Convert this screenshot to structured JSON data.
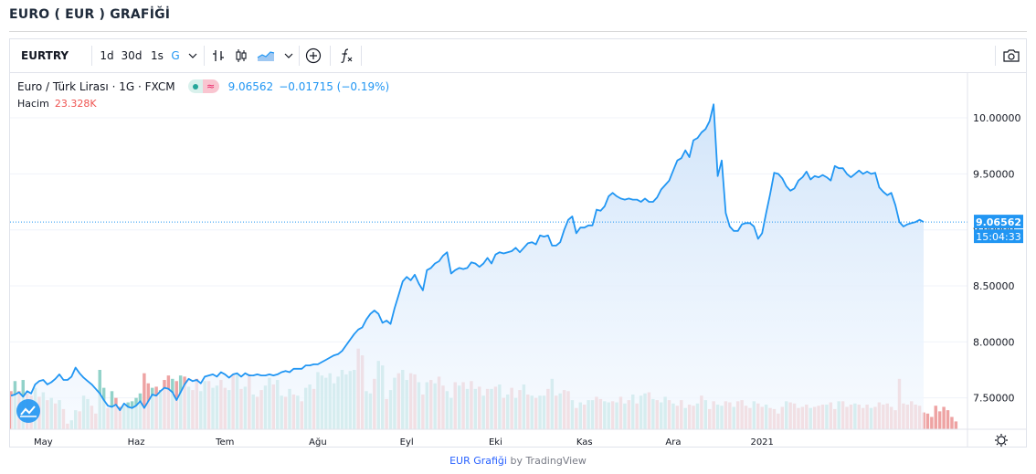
{
  "page": {
    "title": "EURO ( EUR ) GRAFİĞİ"
  },
  "toolbar": {
    "symbol": "EURTRY",
    "intervals": [
      "1d",
      "30d",
      "1s",
      "G"
    ],
    "active_interval": "G",
    "dropdown_icon": "chevron-down-icon",
    "icons": [
      "bar-style-icon",
      "candles-style-icon",
      "area-style-icon",
      "chevron-down-icon",
      "add-compare-icon",
      "indicators-fx-icon",
      "snapshot-camera-icon"
    ]
  },
  "legend": {
    "name": "Euro / Türk Lirası · 1G · FXCM",
    "pill_right": "≈",
    "price": "9.06562",
    "change": "−0.01715 (−0.19%)",
    "volume_label": "Hacim",
    "volume_value": "23.328K"
  },
  "price_axis": {
    "last_price": "9.06562",
    "countdown": "15:04:33"
  },
  "footer": {
    "brand": "EUR Grafiği",
    "by": "by TradingView"
  },
  "colors": {
    "line": "#2196f3",
    "area_top": "#cfe3f9",
    "area_bottom": "#f4f9ff",
    "vol_up": "#92d2c9",
    "vol_down": "#eea3a3",
    "axis_text": "#131722",
    "grid": "#f0f3fa"
  },
  "chart_data": {
    "type": "area",
    "title": "",
    "xlabel": "",
    "ylabel": "",
    "ylim": [
      7.22,
      10.4
    ],
    "yticks": [
      7.5,
      8.0,
      8.5,
      9.0,
      9.5,
      10.0
    ],
    "ytick_labels": [
      "7.50000",
      "8.00000",
      "8.50000",
      "9.00000",
      "9.50000",
      "10.00000"
    ],
    "x_labels": [
      {
        "label": "May",
        "i": 8
      },
      {
        "label": "Haz",
        "i": 31
      },
      {
        "label": "Tem",
        "i": 53
      },
      {
        "label": "Ağu",
        "i": 76
      },
      {
        "label": "Eyl",
        "i": 98
      },
      {
        "label": "Eki",
        "i": 120
      },
      {
        "label": "Kas",
        "i": 142
      },
      {
        "label": "Ara",
        "i": 164
      },
      {
        "label": "2021",
        "i": 186
      }
    ],
    "series": [
      {
        "values": [
          7.52,
          7.53,
          7.55,
          7.51,
          7.56,
          7.54,
          7.62,
          7.65,
          7.66,
          7.62,
          7.64,
          7.67,
          7.71,
          7.66,
          7.66,
          7.69,
          7.77,
          7.72,
          7.68,
          7.65,
          7.62,
          7.58,
          7.54,
          7.48,
          7.43,
          7.42,
          7.44,
          7.39,
          7.45,
          7.42,
          7.41,
          7.43,
          7.47,
          7.41,
          7.47,
          7.53,
          7.52,
          7.56,
          7.59,
          7.58,
          7.55,
          7.48,
          7.55,
          7.62,
          7.67,
          7.65,
          7.66,
          7.63,
          7.69,
          7.7,
          7.71,
          7.69,
          7.73,
          7.71,
          7.68,
          7.71,
          7.72,
          7.69,
          7.72,
          7.7,
          7.7,
          7.71,
          7.7,
          7.7,
          7.71,
          7.7,
          7.71,
          7.73,
          7.74,
          7.73,
          7.76,
          7.76,
          7.76,
          7.79,
          7.79,
          7.8,
          7.8,
          7.82,
          7.84,
          7.86,
          7.88,
          7.89,
          7.92,
          7.97,
          8.02,
          8.07,
          8.11,
          8.13,
          8.2,
          8.25,
          8.28,
          8.25,
          8.17,
          8.19,
          8.16,
          8.3,
          8.42,
          8.54,
          8.58,
          8.55,
          8.6,
          8.52,
          8.46,
          8.64,
          8.66,
          8.7,
          8.72,
          8.77,
          8.8,
          8.61,
          8.64,
          8.66,
          8.65,
          8.66,
          8.71,
          8.7,
          8.67,
          8.7,
          8.75,
          8.7,
          8.78,
          8.8,
          8.79,
          8.8,
          8.81,
          8.84,
          8.8,
          8.84,
          8.88,
          8.89,
          8.87,
          8.95,
          8.94,
          8.95,
          8.86,
          8.86,
          8.89,
          9.0,
          9.09,
          9.12,
          8.97,
          9.02,
          9.02,
          9.04,
          9.04,
          9.18,
          9.17,
          9.21,
          9.3,
          9.33,
          9.3,
          9.28,
          9.27,
          9.28,
          9.27,
          9.27,
          9.25,
          9.28,
          9.25,
          9.25,
          9.29,
          9.36,
          9.4,
          9.44,
          9.53,
          9.62,
          9.64,
          9.71,
          9.65,
          9.8,
          9.82,
          9.87,
          9.9,
          9.97,
          10.12,
          9.48,
          9.62,
          9.15,
          9.03,
          8.99,
          8.99,
          9.05,
          9.06,
          9.06,
          9.03,
          8.92,
          8.97,
          9.15,
          9.32,
          9.51,
          9.5,
          9.46,
          9.39,
          9.35,
          9.37,
          9.44,
          9.47,
          9.52,
          9.45,
          9.48,
          9.47,
          9.49,
          9.47,
          9.44,
          9.57,
          9.55,
          9.55,
          9.5,
          9.47,
          9.5,
          9.53,
          9.5,
          9.52,
          9.5,
          9.51,
          9.38,
          9.34,
          9.31,
          9.33,
          9.22,
          9.07,
          9.03,
          9.05,
          9.06,
          9.07,
          9.09,
          9.07
        ]
      }
    ],
    "volume": {
      "values": [
        7.56,
        7.65,
        7.56,
        7.66,
        7.54,
        7.52,
        7.59,
        7.51,
        7.55,
        7.48,
        7.5,
        7.45,
        7.48,
        7.4,
        7.27,
        7.3,
        7.39,
        7.38,
        7.52,
        7.49,
        7.43,
        7.36,
        7.75,
        7.59,
        7.41,
        7.56,
        7.5,
        7.42,
        7.43,
        7.46,
        7.47,
        7.5,
        7.54,
        7.72,
        7.63,
        7.59,
        7.6,
        7.57,
        7.66,
        7.7,
        7.67,
        7.65,
        7.7,
        7.69,
        7.6,
        7.57,
        7.67,
        7.56,
        7.65,
        7.65,
        7.59,
        7.61,
        7.66,
        7.59,
        7.57,
        7.71,
        7.71,
        7.58,
        7.6,
        7.71,
        7.53,
        7.51,
        7.57,
        7.61,
        7.68,
        7.62,
        7.66,
        7.52,
        7.51,
        7.58,
        7.53,
        7.52,
        7.47,
        7.59,
        7.62,
        7.58,
        7.73,
        7.7,
        7.68,
        7.72,
        7.63,
        7.69,
        7.75,
        7.71,
        7.74,
        7.75,
        7.94,
        7.88,
        7.56,
        7.54,
        7.67,
        7.83,
        7.79,
        7.49,
        7.57,
        7.68,
        7.72,
        7.75,
        7.66,
        7.72,
        7.71,
        7.64,
        7.53,
        7.64,
        7.66,
        7.63,
        7.69,
        7.61,
        7.56,
        7.5,
        7.64,
        7.61,
        7.64,
        7.58,
        7.65,
        7.58,
        7.6,
        7.52,
        7.58,
        7.58,
        7.6,
        7.62,
        7.5,
        7.53,
        7.59,
        7.5,
        7.57,
        7.62,
        7.53,
        7.52,
        7.5,
        7.52,
        7.52,
        7.58,
        7.67,
        7.52,
        7.54,
        7.57,
        7.56,
        7.48,
        7.41,
        7.46,
        7.44,
        7.48,
        7.48,
        7.51,
        7.49,
        7.47,
        7.46,
        7.47,
        7.46,
        7.51,
        7.45,
        7.48,
        7.53,
        7.45,
        7.52,
        7.54,
        7.55,
        7.49,
        7.48,
        7.46,
        7.51,
        7.48,
        7.45,
        7.43,
        7.48,
        7.41,
        7.44,
        7.43,
        7.45,
        7.52,
        7.48,
        7.4,
        7.47,
        7.44,
        7.43,
        7.47,
        7.46,
        7.42,
        7.47,
        7.48,
        7.43,
        7.41,
        7.47,
        7.45,
        7.42,
        7.44,
        7.41,
        7.4,
        7.36,
        7.42,
        7.47,
        7.46,
        7.45,
        7.41,
        7.42,
        7.44,
        7.41,
        7.42,
        7.43,
        7.44,
        7.44,
        7.46,
        7.4,
        7.47,
        7.47,
        7.42,
        7.44,
        7.45,
        7.44,
        7.41,
        7.44,
        7.41,
        7.42,
        7.46,
        7.44,
        7.45,
        7.42,
        7.39,
        7.67,
        7.45,
        7.44,
        7.47,
        7.44,
        7.43,
        7.37,
        7.36,
        7.33,
        7.43,
        7.38,
        7.42,
        7.39,
        7.33,
        7.29
      ],
      "colors": [
        "down",
        "up",
        "down",
        "up",
        "down",
        "down",
        "up",
        "down",
        "up",
        "down",
        "up",
        "down",
        "up",
        "down",
        "down",
        "up",
        "up",
        "down",
        "up",
        "up",
        "down",
        "down",
        "up",
        "up",
        "down",
        "up",
        "down",
        "down",
        "up",
        "up",
        "up",
        "up",
        "up",
        "down",
        "down",
        "up",
        "down",
        "up",
        "down",
        "down",
        "up",
        "down",
        "up",
        "down",
        "up",
        "down",
        "down",
        "up",
        "up",
        "down",
        "up",
        "up",
        "down",
        "down",
        "up",
        "down",
        "up",
        "down",
        "up",
        "down",
        "up",
        "down",
        "down",
        "up",
        "up",
        "down",
        "up",
        "up",
        "down",
        "up",
        "down",
        "up",
        "down",
        "up",
        "up",
        "down",
        "up",
        "up",
        "up",
        "up",
        "up",
        "up",
        "up",
        "up",
        "up",
        "up",
        "down",
        "down",
        "up",
        "up",
        "down",
        "up",
        "up",
        "down",
        "up",
        "up",
        "down",
        "up",
        "up",
        "down",
        "down",
        "up",
        "down",
        "up",
        "down",
        "up",
        "down",
        "down",
        "up",
        "up",
        "down",
        "up",
        "down",
        "up",
        "down",
        "up",
        "down",
        "up",
        "down",
        "up",
        "down",
        "up",
        "down",
        "up",
        "down",
        "up",
        "down",
        "up",
        "down",
        "up",
        "down",
        "up",
        "up",
        "down",
        "up",
        "down",
        "up",
        "down",
        "down",
        "up",
        "down",
        "up",
        "down",
        "up",
        "up",
        "down",
        "down",
        "up",
        "up",
        "down",
        "up",
        "down",
        "up",
        "down",
        "up",
        "down",
        "up",
        "up",
        "down",
        "up",
        "down",
        "up",
        "up",
        "down",
        "up",
        "down",
        "down",
        "up",
        "down",
        "down",
        "up",
        "down",
        "up",
        "down",
        "down",
        "up",
        "up",
        "down",
        "down",
        "up",
        "down",
        "down",
        "down",
        "down",
        "up",
        "down",
        "down",
        "up",
        "down",
        "down",
        "down",
        "down",
        "up",
        "down",
        "down",
        "down",
        "down",
        "down",
        "up",
        "down",
        "down",
        "down",
        "up",
        "down",
        "down",
        "up",
        "down",
        "down",
        "down",
        "up",
        "down",
        "down",
        "down",
        "up",
        "down",
        "down",
        "down",
        "down",
        "down",
        "down",
        "down",
        "down",
        "down",
        "down"
      ]
    }
  }
}
